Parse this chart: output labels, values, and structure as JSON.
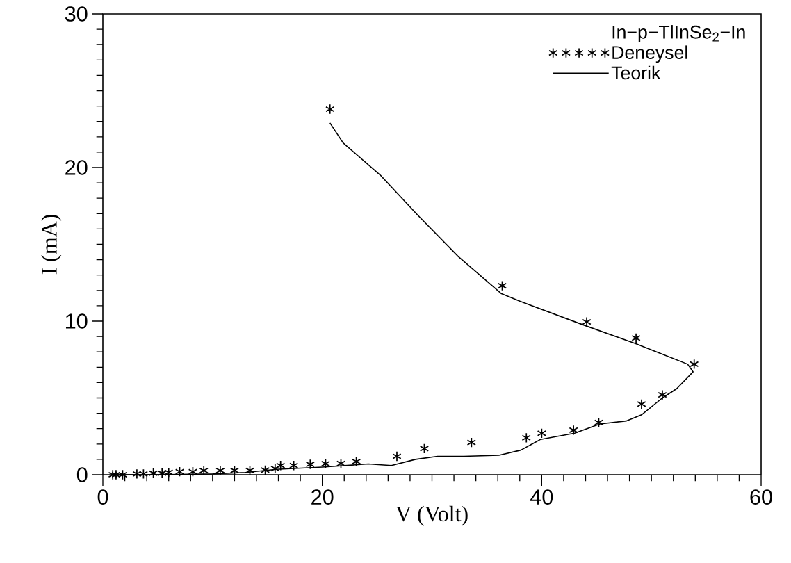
{
  "chart_data": {
    "type": "scatter",
    "xlabel": "V (Volt)",
    "ylabel": "I (mA)",
    "legend_title": "In−p−TlInSe$_{2}$−In",
    "xlim": [
      0,
      60
    ],
    "ylim": [
      0,
      30
    ],
    "xticks": [
      0,
      20,
      40,
      60
    ],
    "yticks": [
      0,
      10,
      20,
      30
    ],
    "grid": false,
    "legend": "top right",
    "series": [
      {
        "name": "Deneysel",
        "marker": "cross",
        "color": "#000000",
        "x": [
          0.9,
          1.2,
          1.8,
          3.1,
          3.7,
          4.6,
          5.4,
          6.0,
          7.0,
          8.2,
          9.2,
          10.7,
          12.0,
          13.4,
          14.8,
          15.7,
          16.2,
          17.4,
          18.9,
          20.3,
          21.7,
          23.1,
          26.8,
          29.3,
          33.6,
          38.6,
          40.0,
          42.9,
          45.2,
          49.1,
          51.0,
          53.9,
          48.6,
          44.1,
          36.4,
          20.7
        ],
        "values": [
          0,
          0,
          0,
          0.05,
          0.05,
          0.1,
          0.1,
          0.15,
          0.2,
          0.2,
          0.27,
          0.27,
          0.28,
          0.28,
          0.3,
          0.4,
          0.6,
          0.6,
          0.68,
          0.72,
          0.73,
          0.86,
          1.2,
          1.7,
          2.1,
          2.4,
          2.7,
          2.9,
          3.4,
          4.6,
          5.2,
          7.2,
          8.9,
          9.95,
          12.3,
          23.8
        ]
      },
      {
        "name": "Teorik",
        "type": "line",
        "marker": "none",
        "line_style": "solid",
        "color": "#000000",
        "x": [
          0.9,
          5,
          10,
          13,
          15.8,
          20,
          24.2,
          26.3,
          28.5,
          30.5,
          32.9,
          36.1,
          38.1,
          39.9,
          43.0,
          45.3,
          47.7,
          49.1,
          51.0,
          52.3,
          53.8,
          53.3,
          48.5,
          44.0,
          38.0,
          36.3,
          32.4,
          28.7,
          25.3,
          21.9,
          20.7
        ],
        "values": [
          0,
          0,
          0.05,
          0.15,
          0.35,
          0.5,
          0.7,
          0.6,
          1.0,
          1.2,
          1.2,
          1.27,
          1.6,
          2.3,
          2.7,
          3.3,
          3.5,
          3.9,
          5.0,
          5.6,
          6.7,
          7.2,
          8.55,
          9.7,
          11.3,
          11.8,
          14.2,
          16.9,
          19.5,
          21.6,
          22.9
        ]
      }
    ]
  }
}
